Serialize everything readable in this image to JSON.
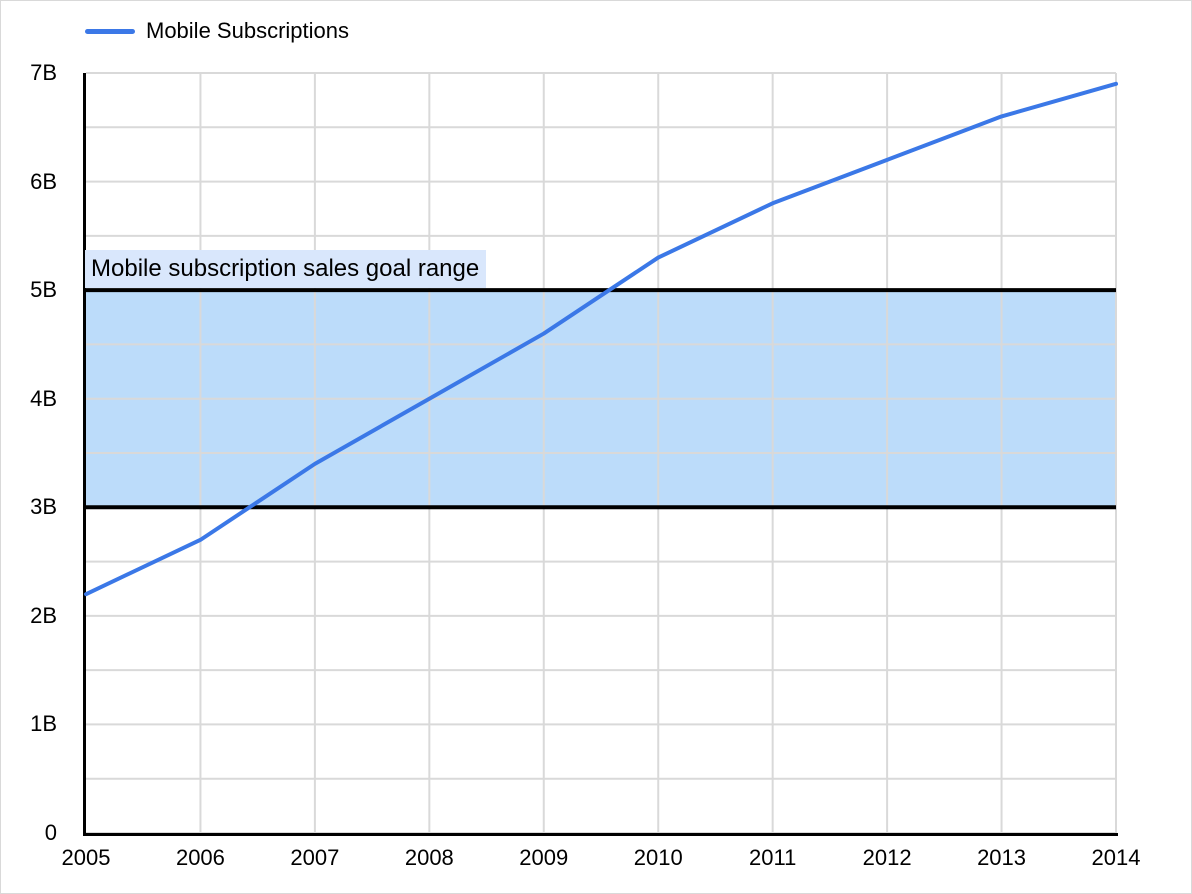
{
  "page": {
    "background": "#ffffff",
    "border_color": "#d9d9d9",
    "text_color": "#000000"
  },
  "legend": {
    "position": "top-left",
    "items": [
      {
        "label": "Mobile Subscriptions",
        "color": "#3b78e7"
      }
    ]
  },
  "chart_data": {
    "type": "line",
    "title": "",
    "legend_position": "top-left",
    "grid": true,
    "gridline_color": "#d9d9d9",
    "axis_color": "#000000",
    "x": [
      2005,
      2006,
      2007,
      2008,
      2009,
      2010,
      2011,
      2012,
      2013,
      2014
    ],
    "x_axis": {
      "tick_labels": [
        "2005",
        "2006",
        "2007",
        "2008",
        "2009",
        "2010",
        "2011",
        "2012",
        "2013",
        "2014"
      ]
    },
    "y_axis": {
      "min": 0,
      "max": 7,
      "unit": "B",
      "major_step": 1,
      "minor_step": 0.5,
      "tick_labels": [
        "0",
        "1B",
        "2B",
        "3B",
        "4B",
        "5B",
        "6B",
        "7B"
      ]
    },
    "series": [
      {
        "name": "Mobile Subscriptions",
        "color": "#3b78e7",
        "values": [
          2.2,
          2.7,
          3.4,
          4.0,
          4.6,
          5.3,
          5.8,
          6.2,
          6.6,
          6.9
        ]
      }
    ],
    "goal_band": {
      "label": "Mobile subscription sales goal range",
      "from": 3,
      "to": 5,
      "fill": "#bcdcfa",
      "border_color": "#000000",
      "label_bg": "#d9e7fc"
    }
  }
}
